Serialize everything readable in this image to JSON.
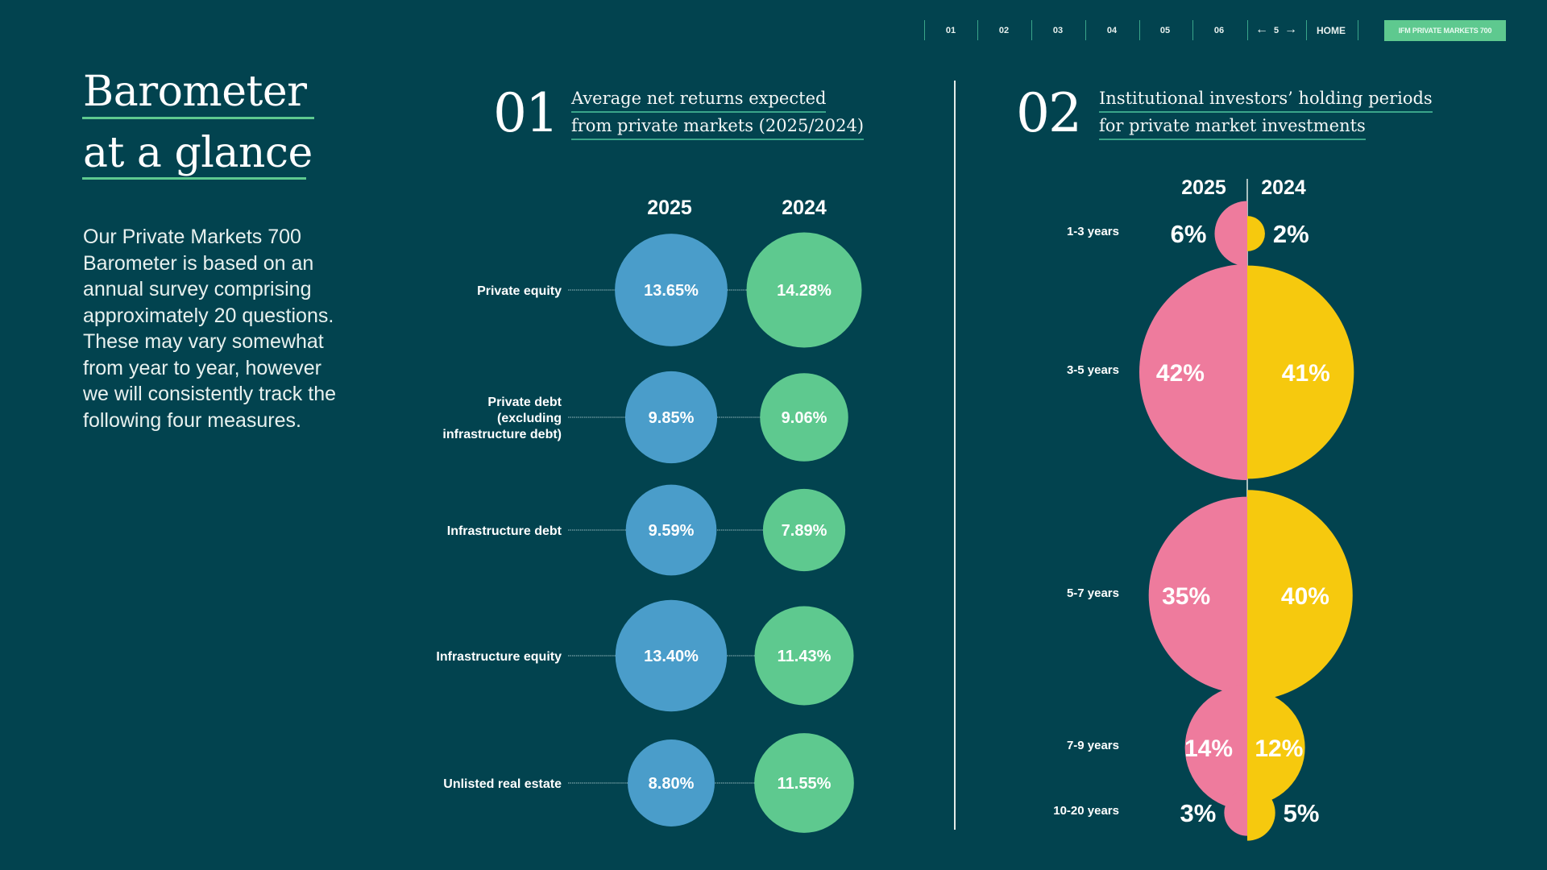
{
  "nav": {
    "items": [
      "01",
      "02",
      "03",
      "04",
      "05",
      "06"
    ],
    "page_prev_icon": "arrow-left-icon",
    "page_number": "5",
    "page_next_icon": "arrow-right-icon",
    "home_label": "HOME",
    "brand_button_label": "IFM PRIVATE MARKETS 700"
  },
  "intro": {
    "title_line1": "Barometer",
    "title_line2": "at a glance",
    "body": "Our Private Markets 700 Barometer is based on an annual survey comprising approximately 20 questions. These may vary somewhat from year to year, however we will consistently track the following four measures."
  },
  "section1": {
    "number": "01",
    "title_line1": "Average net returns expected",
    "title_line2": "from private markets (2025/2024)"
  },
  "section2": {
    "number": "02",
    "title_line1": "Institutional investors’ holding periods",
    "title_line2": "for private market investments"
  },
  "colors": {
    "background": "#02434f",
    "accent_green": "#5ec98f",
    "blue_2025": "#4a9dca",
    "green_2024": "#5ec98f",
    "pink_2025": "#ee7b9d",
    "yellow_2024": "#f6c90e"
  },
  "chart_data": [
    {
      "type": "bubble",
      "title": "Average net returns expected from private markets (2025/2024)",
      "unit": "%",
      "series_labels": [
        "2025",
        "2024"
      ],
      "categories": [
        "Private equity",
        "Private debt (excluding infrastructure debt)",
        "Infrastructure debt",
        "Infrastructure equity",
        "Unlisted real estate"
      ],
      "category_lines": [
        [
          "Private equity"
        ],
        [
          "Private debt",
          "(excluding",
          "infrastructure debt)"
        ],
        [
          "Infrastructure debt"
        ],
        [
          "Infrastructure equity"
        ],
        [
          "Unlisted real estate"
        ]
      ],
      "series": [
        {
          "name": "2025",
          "values": [
            13.65,
            9.85,
            9.59,
            13.4,
            8.8
          ],
          "labels": [
            "13.65%",
            "9.85%",
            "9.59%",
            "13.40%",
            "8.80%"
          ]
        },
        {
          "name": "2024",
          "values": [
            14.28,
            9.06,
            7.89,
            11.43,
            11.55
          ],
          "labels": [
            "14.28%",
            "9.06%",
            "7.89%",
            "11.43%",
            "11.55%"
          ]
        }
      ]
    },
    {
      "type": "split-bubble",
      "title": "Institutional investors’ holding periods for private market investments",
      "unit": "%",
      "series_labels": [
        "2025",
        "2024"
      ],
      "categories": [
        "1-3 years",
        "3-5 years",
        "5-7 years",
        "7-9 years",
        "10-20 years"
      ],
      "series": [
        {
          "name": "2025",
          "values": [
            6,
            42,
            35,
            14,
            3
          ],
          "labels": [
            "6%",
            "42%",
            "35%",
            "14%",
            "3%"
          ]
        },
        {
          "name": "2024",
          "values": [
            2,
            41,
            40,
            12,
            5
          ],
          "labels": [
            "2%",
            "41%",
            "40%",
            "12%",
            "5%"
          ]
        }
      ]
    }
  ]
}
